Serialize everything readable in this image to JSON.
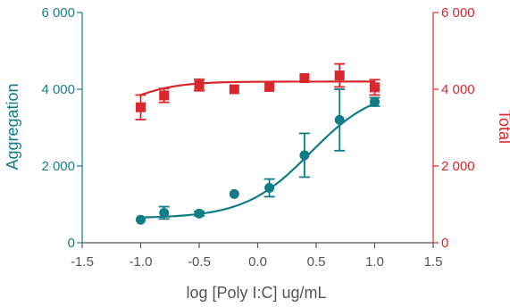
{
  "chart_data": {
    "type": "scatter",
    "xlabel": "log [Poly I:C] ug/mL",
    "ylabel_left": "Aggregation",
    "ylabel_right": "Total",
    "xlim": [
      -1.5,
      1.5
    ],
    "ylim_left": [
      0,
      6000
    ],
    "ylim_right": [
      0,
      6000
    ],
    "x_ticks": [
      "-1.5",
      "-1.0",
      "-0.5",
      "0.0",
      "0.5",
      "1.0",
      "1.5"
    ],
    "y_ticks_left": [
      "0",
      "2 000",
      "4 000",
      "6 000"
    ],
    "y_ticks_right": [
      "0",
      "2 000",
      "4 000",
      "6 000"
    ],
    "grid": false,
    "series": [
      {
        "axis": "left",
        "marker": "circle",
        "color": "#0f7c86",
        "points": [
          {
            "x": -1.0,
            "y": 600,
            "err": 0
          },
          {
            "x": -0.8,
            "y": 780,
            "err": 160
          },
          {
            "x": -0.5,
            "y": 760,
            "err": 60
          },
          {
            "x": -0.2,
            "y": 1270,
            "err": 0
          },
          {
            "x": 0.1,
            "y": 1430,
            "err": 230
          },
          {
            "x": 0.4,
            "y": 2280,
            "err": 570
          },
          {
            "x": 0.7,
            "y": 3200,
            "err": 800
          },
          {
            "x": 1.0,
            "y": 3670,
            "err": 110
          }
        ],
        "fit": {
          "bottom": 640,
          "top": 4050,
          "logec50": 0.45,
          "hill": 1.55
        }
      },
      {
        "axis": "right",
        "marker": "square",
        "color": "#d9272e",
        "points": [
          {
            "x": -1.0,
            "y": 3530,
            "err": 320
          },
          {
            "x": -0.8,
            "y": 3840,
            "err": 180
          },
          {
            "x": -0.5,
            "y": 4110,
            "err": 150
          },
          {
            "x": -0.2,
            "y": 4000,
            "err": 0
          },
          {
            "x": 0.1,
            "y": 4060,
            "err": 0
          },
          {
            "x": 0.4,
            "y": 4290,
            "err": 0
          },
          {
            "x": 0.7,
            "y": 4360,
            "err": 300
          },
          {
            "x": 1.0,
            "y": 4050,
            "err": 200
          }
        ],
        "fit": {
          "bottom": 3150,
          "top": 4200,
          "logec50": -1.15,
          "hill": 2.0
        }
      }
    ]
  }
}
